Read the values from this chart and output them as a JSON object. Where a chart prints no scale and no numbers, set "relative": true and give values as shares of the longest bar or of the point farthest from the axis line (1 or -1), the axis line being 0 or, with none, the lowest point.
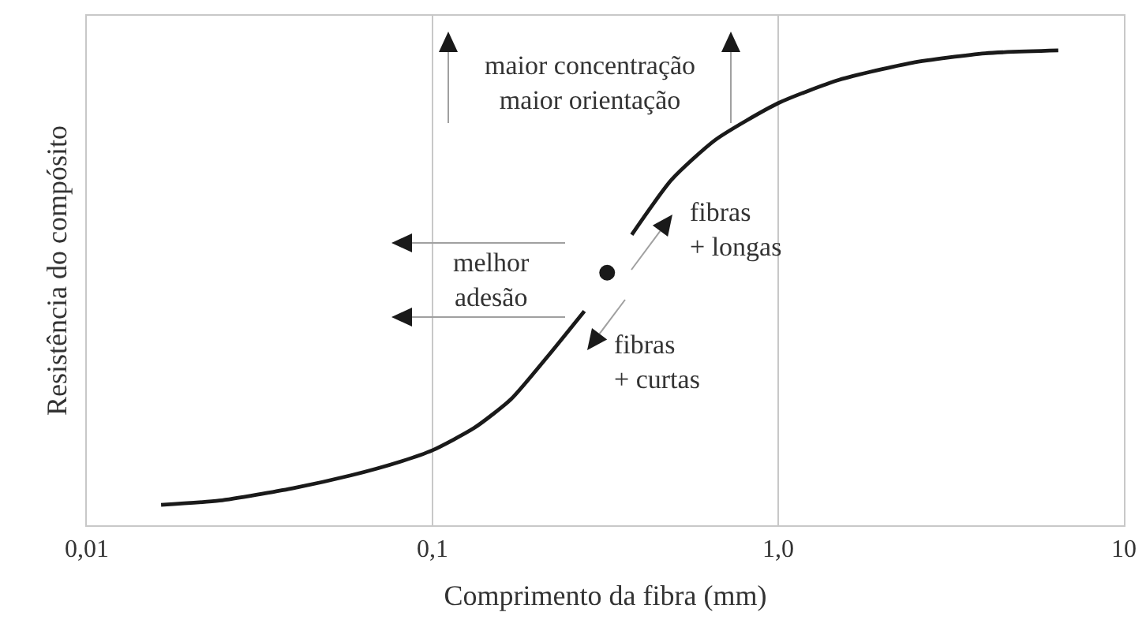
{
  "chart_data": {
    "type": "line",
    "relative": true,
    "log": "x",
    "xlabel": "Comprimento da fibra (mm)",
    "ylabel": "Resistência do compósito",
    "xlim": [
      0.01,
      10
    ],
    "xticks": [
      {
        "value": 0.01,
        "label": "0,01"
      },
      {
        "value": 0.1,
        "label": "0,1"
      },
      {
        "value": 1,
        "label": "1,0"
      },
      10
    ],
    "grid": "x",
    "tick_labels": "x",
    "line_style": "solid",
    "series": [
      {
        "color": "#1a1a1a",
        "x": [
          0.0164,
          0.0242,
          0.0394,
          0.058,
          0.0815,
          0.1,
          0.132,
          0.169,
          0.215,
          0.275,
          0.32,
          0.377,
          0.492,
          0.659,
          1.0,
          1.5,
          2.44,
          3.97,
          6.46
        ],
        "values": [
          0.043,
          0.052,
          0.078,
          0.105,
          0.135,
          0.158,
          0.205,
          0.266,
          0.355,
          0.451,
          null,
          0.612,
          0.728,
          0.812,
          0.889,
          0.938,
          0.974,
          0.994,
          1
        ]
      },
      {
        "type": "scatter",
        "marker": "circle",
        "color": "#1a1a1a",
        "x": [
          0.32
        ],
        "values": [
          0.532
        ]
      }
    ],
    "annotations": [
      "maior concentração\nmaior orientação",
      "melhor\nadesão",
      "fibras\n+ longas",
      "fibras\n+ curtas"
    ]
  }
}
